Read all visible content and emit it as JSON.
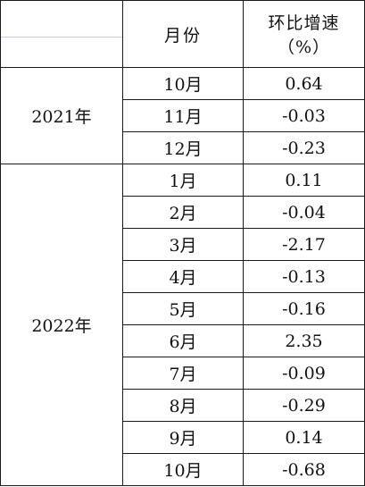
{
  "table": {
    "header": {
      "month_label": "月份",
      "growth_label_line1": "环比增速",
      "growth_label_line2": "（%）"
    },
    "groups": [
      {
        "year": "2021年",
        "rows": [
          {
            "month": "10月",
            "value": "0.64"
          },
          {
            "month": "11月",
            "value": "-0.03"
          },
          {
            "month": "12月",
            "value": "-0.23"
          }
        ]
      },
      {
        "year": "2022年",
        "rows": [
          {
            "month": "1月",
            "value": "0.11"
          },
          {
            "month": "2月",
            "value": "-0.04"
          },
          {
            "month": "3月",
            "value": "-2.17"
          },
          {
            "month": "4月",
            "value": "-0.13"
          },
          {
            "month": "5月",
            "value": "-0.16"
          },
          {
            "month": "6月",
            "value": "2.35"
          },
          {
            "month": "7月",
            "value": "-0.09"
          },
          {
            "month": "8月",
            "value": "-0.29"
          },
          {
            "month": "9月",
            "value": "0.14"
          },
          {
            "month": "10月",
            "value": "-0.68"
          }
        ]
      }
    ]
  }
}
